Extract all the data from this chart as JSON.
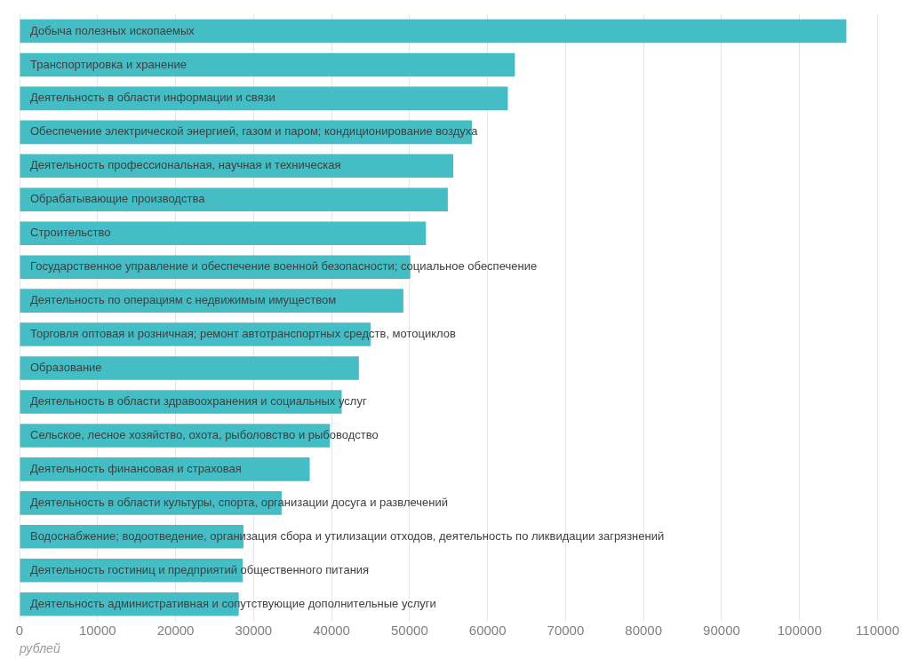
{
  "chart_data": {
    "type": "bar",
    "orientation": "horizontal",
    "xlabel": "рублей",
    "categories": [
      "Добыча полезных ископаемых",
      "Транспортировка и хранение",
      "Деятельность в области информации и связи",
      "Обеспечение электрической энергией, газом и паром; кондиционирование воздуха",
      "Деятельность профессиональная, научная и техническая",
      "Обрабатывающие производства",
      "Строительство",
      "Государственное управление и обеспечение военной безопасности; социальное обеспечение",
      "Деятельность по операциям с недвижимым имуществом",
      "Торговля оптовая и розничная; ремонт автотранспортных средств, мотоциклов",
      "Образование",
      "Деятельность в области здравоохранения и социальных услуг",
      "Сельское, лесное хозяйство, охота, рыболовство и рыбоводство",
      "Деятельность финансовая и страховая",
      "Деятельность в области культуры, спорта, организации досуга и развлечений",
      "Водоснабжение; водоотведение, организация сбора и утилизации отходов, деятельность по ликвидации загрязнений",
      "Деятельность гостиниц и предприятий общественного питания",
      "Деятельность административная и сопутствующие дополнительные услуги"
    ],
    "values": [
      106000,
      63500,
      62600,
      58000,
      55600,
      54900,
      52100,
      50100,
      49200,
      45000,
      43500,
      41300,
      39800,
      37200,
      33600,
      28700,
      28600,
      28100
    ],
    "color": "#45bdc5",
    "xlim": [
      0,
      110000
    ],
    "xticks": [
      0,
      10000,
      20000,
      30000,
      40000,
      50000,
      60000,
      70000,
      80000,
      90000,
      100000,
      110000
    ],
    "grid": "x",
    "legend": false
  }
}
